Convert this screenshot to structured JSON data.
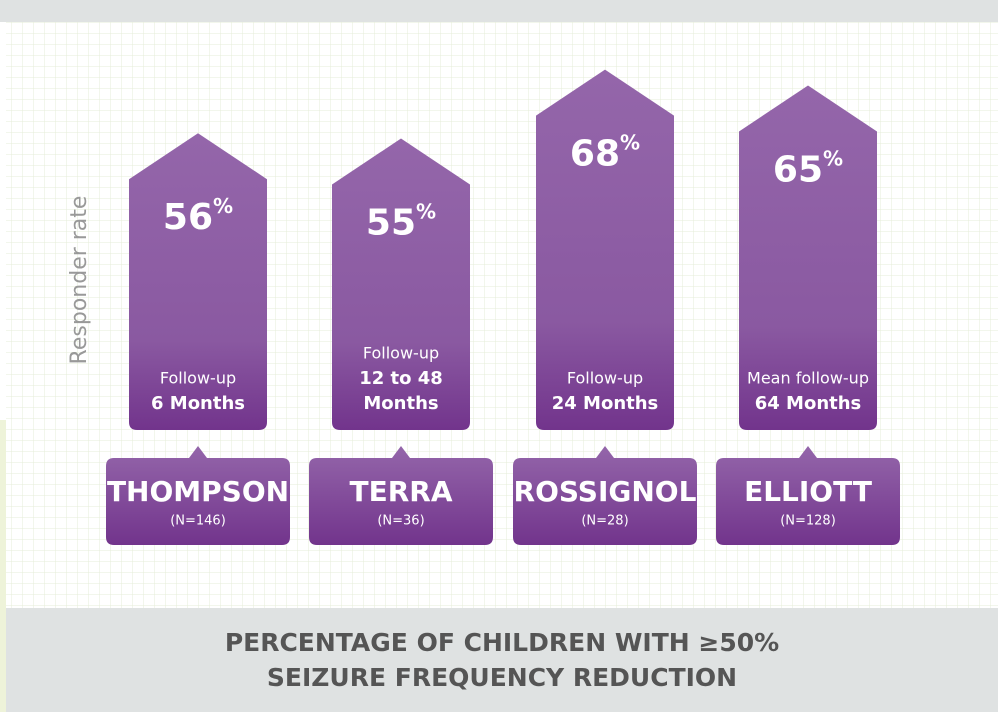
{
  "chart_data": {
    "type": "bar",
    "title": [
      "PERCENTAGE OF CHILDREN WITH ≥50%",
      "SEIZURE FREQUENCY REDUCTION"
    ],
    "y_label": "Responder rate",
    "categories": [
      "THOMPSON",
      "TERRA",
      "ROSSIGNOL",
      "ELLIOTT"
    ],
    "sample_sizes": [
      "(N=146)",
      "(N=36)",
      "(N=28)",
      "(N=128)"
    ],
    "follow_up": [
      [
        "Follow-up",
        "6 Months"
      ],
      [
        "Follow-up",
        "12 to 48",
        "Months"
      ],
      [
        "Follow-up",
        "24 Months"
      ],
      [
        "Mean follow-up",
        "64 Months"
      ]
    ],
    "values": [
      56,
      55,
      68,
      65
    ],
    "value_labels": [
      "56%",
      "55%",
      "68%",
      "65%"
    ],
    "color": "#8e5ea6",
    "ylim": [
      0,
      80
    ]
  }
}
